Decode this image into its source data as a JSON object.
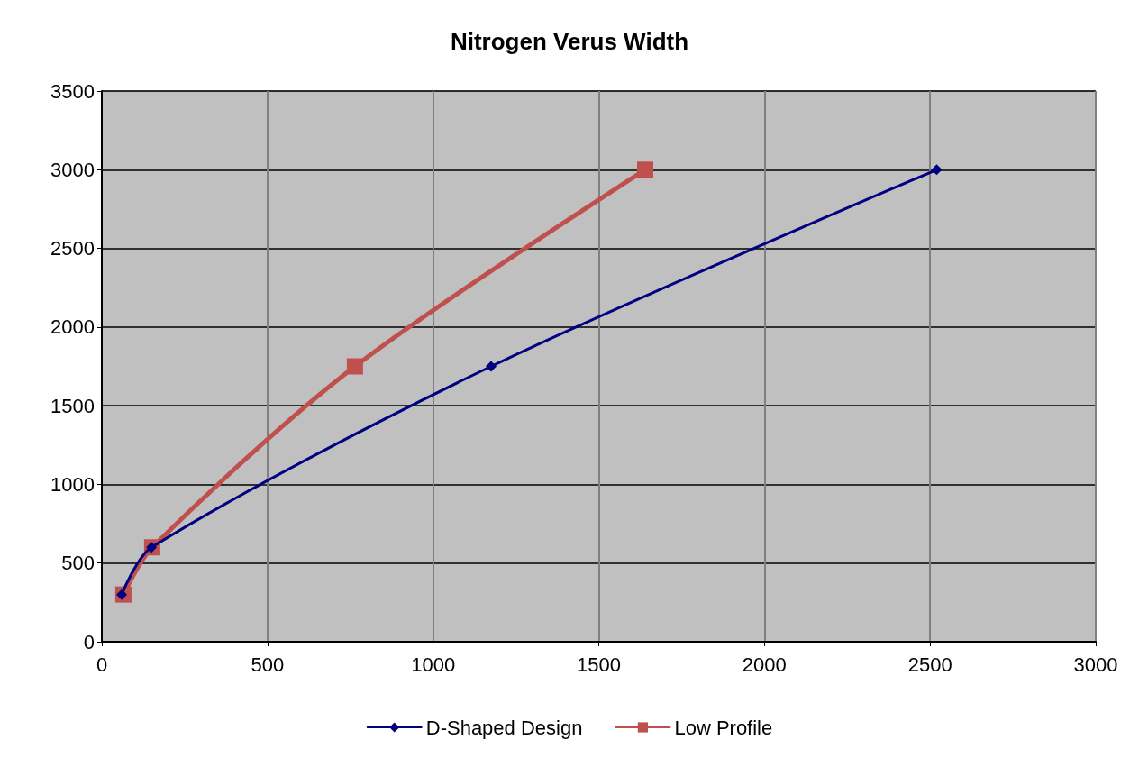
{
  "chart_data": {
    "type": "line",
    "title": "Nitrogen Verus Width",
    "xlim": [
      0,
      3000
    ],
    "xticks": [
      0,
      500,
      1000,
      1500,
      2000,
      2500,
      3000
    ],
    "ylim": [
      0,
      3500
    ],
    "yticks": [
      0,
      500,
      1000,
      1500,
      2000,
      2500,
      3000,
      3500
    ],
    "grid": true,
    "legend": "bottom",
    "series": [
      {
        "name": "D-Shaped Design",
        "color": "#000080",
        "marker": "diamond",
        "x": [
          60,
          150,
          1175,
          2520
        ],
        "values": [
          300,
          600,
          1750,
          3000
        ]
      },
      {
        "name": "Low Profile",
        "color": "#c0504d",
        "marker": "square",
        "x": [
          65,
          152,
          764,
          1640
        ],
        "values": [
          300,
          600,
          1750,
          3000
        ]
      }
    ]
  }
}
